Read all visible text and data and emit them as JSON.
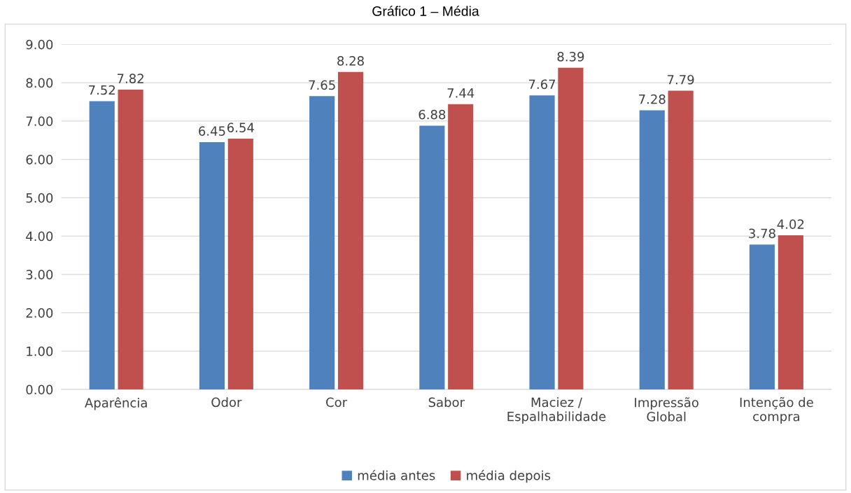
{
  "chart_data": {
    "type": "bar",
    "title": "Gráfico 1 – Média",
    "categories": [
      "Aparência",
      "Odor",
      "Cor",
      "Sabor",
      "Maciez /\nEspalhabilidade",
      "Impressão\nGlobal",
      "Intenção de\ncompra"
    ],
    "series": [
      {
        "name": "média antes",
        "color": "#4f81bd",
        "values": [
          7.52,
          6.45,
          7.65,
          6.88,
          7.67,
          7.28,
          3.78
        ]
      },
      {
        "name": "média depois",
        "color": "#c0504d",
        "values": [
          7.82,
          6.54,
          8.28,
          7.44,
          8.39,
          7.79,
          4.02
        ]
      }
    ],
    "ylim": [
      0,
      9
    ],
    "yticks": [
      {
        "value": 0,
        "label": "0.00"
      },
      {
        "value": 1,
        "label": "1.00"
      },
      {
        "value": 2,
        "label": "2.00"
      },
      {
        "value": 3,
        "label": "3.00"
      },
      {
        "value": 4,
        "label": "4.00"
      },
      {
        "value": 5,
        "label": "5.00"
      },
      {
        "value": 6,
        "label": "6.00"
      },
      {
        "value": 7,
        "label": "7.00"
      },
      {
        "value": 8,
        "label": "8.00"
      },
      {
        "value": 9,
        "label": "9.00"
      }
    ],
    "grid": "y",
    "legend": "bottom",
    "data_labels": true
  }
}
